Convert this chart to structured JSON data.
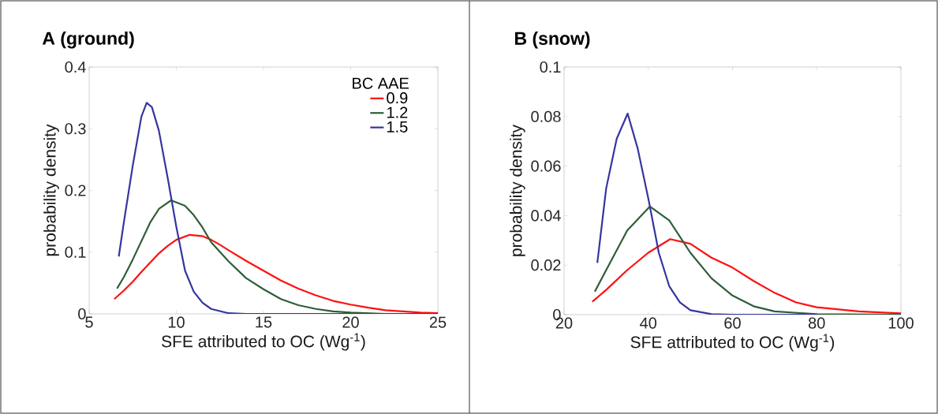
{
  "chart_data": [
    {
      "type": "line",
      "title": "A (ground)",
      "xlabel": "SFE attributed to OC (Wg$^{-1}$)",
      "ylabel": "probability density",
      "legend_title": "BC AAE",
      "legend": "top right",
      "marker": "none",
      "line_style": "solid",
      "xlim": [
        5,
        25
      ],
      "ylim": [
        0,
        0.4
      ],
      "xticks": [
        5,
        10,
        15,
        20,
        25
      ],
      "yticks": [
        0,
        0.1,
        0.2,
        0.3,
        0.4
      ],
      "series": [
        {
          "name": "0.9",
          "color": "#ff1010",
          "x": [
            6.44,
            7,
            7.5,
            8,
            8.5,
            9,
            9.5,
            10,
            10.76,
            11.5,
            12,
            12.5,
            13,
            14,
            15,
            16,
            17,
            18,
            19,
            20,
            21,
            22,
            23,
            24,
            25
          ],
          "values": [
            0.024,
            0.038,
            0.052,
            0.068,
            0.083,
            0.098,
            0.11,
            0.12,
            0.128,
            0.126,
            0.12,
            0.112,
            0.103,
            0.086,
            0.07,
            0.054,
            0.041,
            0.03,
            0.021,
            0.015,
            0.01,
            0.006,
            0.004,
            0.002,
            0.001
          ]
        },
        {
          "name": "1.2",
          "color": "#2e5e38",
          "x": [
            6.6,
            7,
            7.5,
            8,
            8.5,
            9,
            9.7,
            10.5,
            11,
            11.5,
            12,
            13,
            14,
            15,
            16,
            17,
            18,
            19,
            20,
            22,
            25
          ],
          "values": [
            0.041,
            0.06,
            0.088,
            0.118,
            0.148,
            0.17,
            0.184,
            0.175,
            0.16,
            0.14,
            0.116,
            0.085,
            0.058,
            0.04,
            0.024,
            0.014,
            0.008,
            0.004,
            0.002,
            0,
            0
          ]
        },
        {
          "name": "1.5",
          "color": "#3535a0",
          "x": [
            6.7,
            7,
            7.5,
            8,
            8.3,
            8.6,
            9,
            9.5,
            10,
            10.5,
            11,
            11.5,
            12,
            13,
            14,
            25
          ],
          "values": [
            0.093,
            0.15,
            0.24,
            0.32,
            0.342,
            0.335,
            0.297,
            0.221,
            0.141,
            0.07,
            0.036,
            0.018,
            0.008,
            0.001,
            0,
            0
          ]
        }
      ]
    },
    {
      "type": "line",
      "title": "B (snow)",
      "xlabel": "SFE attributed to OC (Wg$^{-1}$)",
      "ylabel": "probability density",
      "marker": "none",
      "line_style": "solid",
      "xlim": [
        20,
        100
      ],
      "ylim": [
        0,
        0.1
      ],
      "xticks": [
        20,
        40,
        60,
        80,
        100
      ],
      "yticks": [
        0,
        0.02,
        0.04,
        0.06,
        0.08,
        0.1
      ],
      "series": [
        {
          "color": "#ff1010",
          "x": [
            26.7,
            30,
            35,
            40,
            45.2,
            50,
            55,
            60,
            65,
            70,
            75,
            80,
            90,
            100
          ],
          "values": [
            0.0052,
            0.01,
            0.018,
            0.025,
            0.0305,
            0.0286,
            0.023,
            0.019,
            0.0136,
            0.0088,
            0.005,
            0.003,
            0.0013,
            0.0005
          ]
        },
        {
          "color": "#2e5e38",
          "x": [
            27.3,
            30,
            35,
            40.4,
            45,
            50,
            55,
            60,
            65,
            70,
            80,
            100
          ],
          "values": [
            0.0093,
            0.018,
            0.034,
            0.0437,
            0.038,
            0.025,
            0.0147,
            0.0077,
            0.0034,
            0.0013,
            0.0002,
            0
          ]
        },
        {
          "color": "#3535a0",
          "x": [
            27.9,
            30,
            32.5,
            35.1,
            37.5,
            40,
            42.5,
            45,
            47.5,
            50,
            55,
            60,
            80
          ],
          "values": [
            0.0209,
            0.051,
            0.071,
            0.0812,
            0.067,
            0.047,
            0.025,
            0.0114,
            0.005,
            0.0018,
            0.0002,
            0,
            0
          ]
        }
      ]
    }
  ]
}
